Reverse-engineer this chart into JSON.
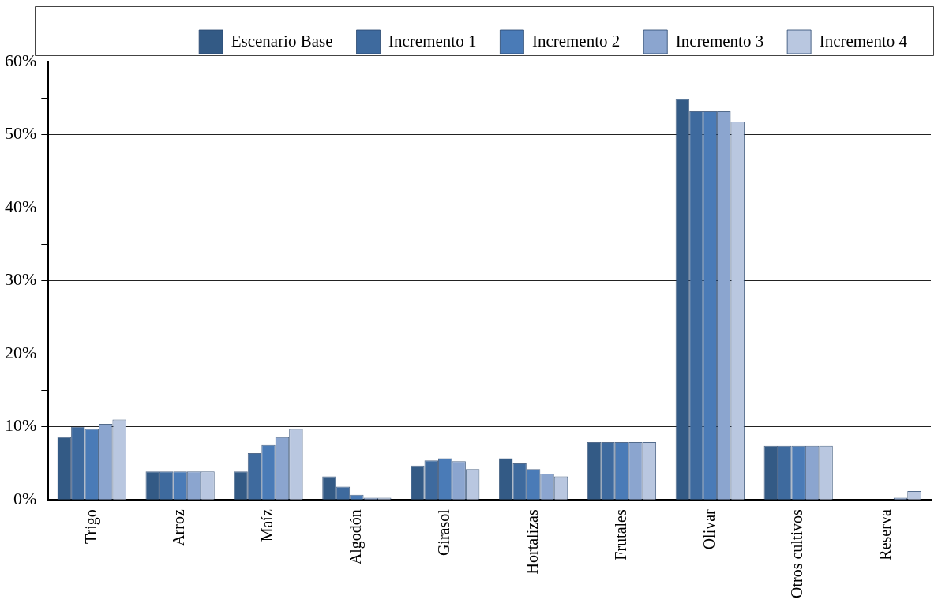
{
  "chart_data": {
    "type": "bar",
    "categories": [
      "Trigo",
      "Arroz",
      "Maíz",
      "Algodón",
      "Girasol",
      "Hortalizas",
      "Frutales",
      "Olivar",
      "Otros cultivos",
      "Reserva"
    ],
    "series": [
      {
        "name": "Escenario Base",
        "color": "#335a85",
        "values": [
          8.6,
          3.9,
          3.9,
          3.2,
          4.7,
          5.7,
          7.9,
          54.9,
          7.4,
          0
        ]
      },
      {
        "name": "Incremento 1",
        "color": "#3e6a9e",
        "values": [
          10.0,
          3.9,
          6.4,
          1.8,
          5.4,
          5.0,
          7.9,
          53.2,
          7.4,
          0
        ]
      },
      {
        "name": "Incremento 2",
        "color": "#4a7bb7",
        "values": [
          9.7,
          3.9,
          7.5,
          0.7,
          5.7,
          4.2,
          7.9,
          53.2,
          7.4,
          0
        ]
      },
      {
        "name": "Incremento 3",
        "color": "#8ba5cf",
        "values": [
          10.4,
          3.9,
          8.6,
          0.3,
          5.3,
          3.6,
          7.9,
          53.2,
          7.4,
          0.3
        ]
      },
      {
        "name": "Incremento 4",
        "color": "#b9c7e0",
        "values": [
          11.0,
          3.9,
          9.7,
          0.3,
          4.2,
          3.2,
          7.9,
          51.8,
          7.4,
          1.2
        ]
      }
    ],
    "ylim": [
      0,
      60
    ],
    "yticks": [
      {
        "value": 0,
        "label": "0%"
      },
      {
        "value": 5,
        "label": null
      },
      {
        "value": 10,
        "label": "10%"
      },
      {
        "value": 15,
        "label": null
      },
      {
        "value": 20,
        "label": "20%"
      },
      {
        "value": 25,
        "label": null
      },
      {
        "value": 30,
        "label": "30%"
      },
      {
        "value": 35,
        "label": null
      },
      {
        "value": 40,
        "label": "40%"
      },
      {
        "value": 45,
        "label": null
      },
      {
        "value": 50,
        "label": "50%"
      },
      {
        "value": 55,
        "label": null
      },
      {
        "value": 60,
        "label": "60%"
      }
    ],
    "grid": "y",
    "legend": "top"
  }
}
